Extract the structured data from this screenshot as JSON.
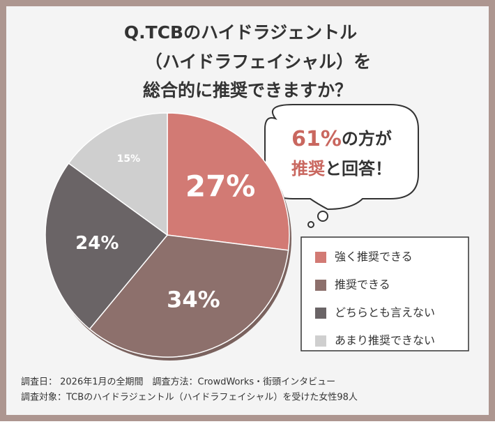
{
  "chart_data": {
    "type": "pie",
    "title_lines": [
      "Q.TCBのハイドラジェントル",
      "（ハイドラフェイシャル）を",
      "総合的に推奨できますか？"
    ],
    "categories": [
      "強く推奨できる",
      "推奨できる",
      "どちらとも言えない",
      "あまり推奨できない"
    ],
    "values": [
      27,
      34,
      24,
      15
    ],
    "value_labels": [
      "27%",
      "34%",
      "24%",
      "15%"
    ],
    "colors": [
      "#d27a74",
      "#8d706c",
      "#6a6466",
      "#cfcfcf"
    ],
    "callout": {
      "line1": [
        "61%",
        "の方が"
      ],
      "line2": [
        "推奨",
        "と回答！"
      ]
    },
    "footer": [
      "調査日： 2026年1月の全期間　調査方法：CrowdWorks・街頭インタビュー",
      "調査対象：TCBのハイドラジェントル（ハイドラフェイシャル）を受けた女性98人"
    ]
  }
}
